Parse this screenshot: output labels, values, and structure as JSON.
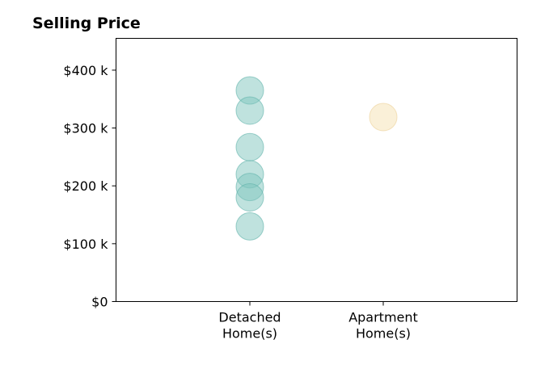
{
  "chart_data": {
    "type": "scatter",
    "title": "Selling Price",
    "xlabel": "",
    "ylabel": "",
    "categories": [
      [
        "Detached",
        "Home(s)"
      ],
      [
        "Apartment",
        "Home(s)"
      ]
    ],
    "ylim": [
      0,
      455000
    ],
    "yticks": [
      {
        "value": 0,
        "label": "$0"
      },
      {
        "value": 100000,
        "label": "$100 k"
      },
      {
        "value": 200000,
        "label": "$200 k"
      },
      {
        "value": 300000,
        "label": "$300 k"
      },
      {
        "value": 400000,
        "label": "$400 k"
      }
    ],
    "grid": false,
    "series": [
      {
        "category": 0,
        "color": "#7fc5be",
        "edge_color": "#5fb3aa",
        "values": [
          365000,
          330000,
          267000,
          220000,
          198000,
          180000,
          130000
        ]
      },
      {
        "category": 1,
        "color": "#f6e2b2",
        "edge_color": "#ecd198",
        "values": [
          319000
        ]
      }
    ]
  }
}
